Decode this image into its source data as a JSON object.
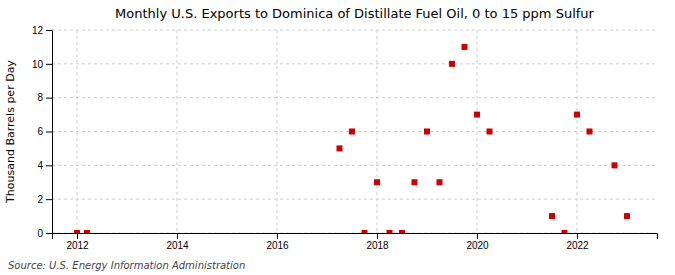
{
  "chart_data": {
    "type": "scatter",
    "title": "Monthly U.S. Exports to Dominica of Distillate Fuel Oil, 0 to 15 ppm Sulfur",
    "ylabel": "Thousand Barrels per Day",
    "annotations": [
      "Source: U.S. Energy Information Administration"
    ],
    "x": [
      2012.0,
      2012.2,
      2017.25,
      2017.5,
      2017.75,
      2018.0,
      2018.25,
      2018.5,
      2018.75,
      2019.0,
      2019.25,
      2019.5,
      2019.75,
      2020.0,
      2020.25,
      2021.5,
      2021.75,
      2022.0,
      2022.25,
      2022.75,
      2023.0
    ],
    "values": [
      0,
      0,
      5,
      6,
      0,
      3,
      0,
      0,
      3,
      6,
      3,
      10,
      11,
      7,
      6,
      1,
      0,
      7,
      6,
      4,
      1
    ],
    "color": "#cc0000",
    "marker": "square",
    "xlim": [
      2011.5,
      2023.6
    ],
    "xticks": [
      2012,
      2014,
      2016,
      2018,
      2020,
      2022
    ],
    "ylim": [
      0,
      12
    ],
    "yticks": [
      0,
      2,
      4,
      6,
      8,
      10,
      12
    ],
    "grid": true
  }
}
